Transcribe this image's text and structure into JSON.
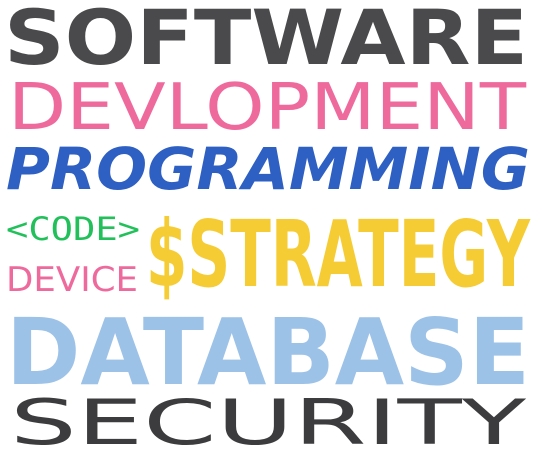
{
  "words": {
    "software": {
      "text": "SOFTWARE",
      "color": "#4a4a4c"
    },
    "development": {
      "text": "DEVLOPMENT",
      "color": "#ef6a9c"
    },
    "programming": {
      "text": "PROGRAMMING",
      "color": "#2e5fc2"
    },
    "code": {
      "text": "<CODE>",
      "color": "#22c05a"
    },
    "device": {
      "text": "DEVICE",
      "color": "#ef6a9c"
    },
    "strategy": {
      "text": "$STRATEGY",
      "color": "#f6cc34"
    },
    "database": {
      "text": "DATABASE",
      "color": "#9cc2e8"
    },
    "security": {
      "text": "SECURITY",
      "color": "#3c3c3e"
    }
  }
}
